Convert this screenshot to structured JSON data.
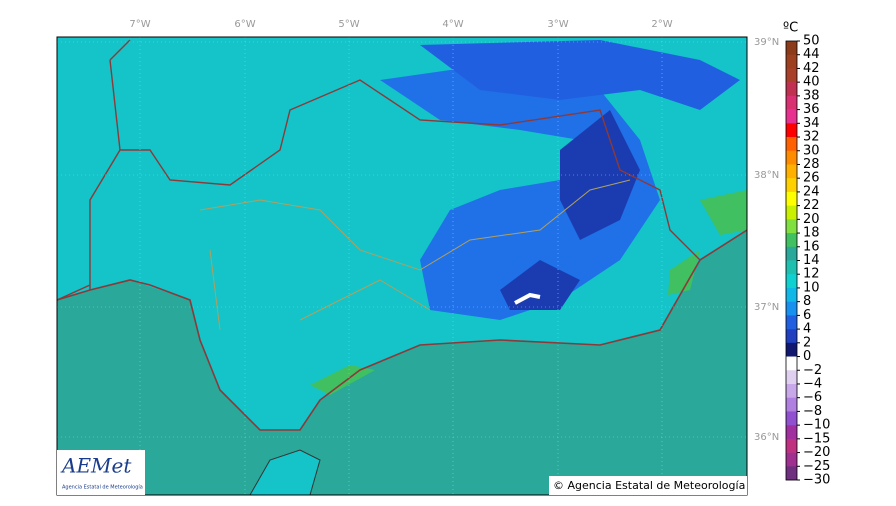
{
  "map": {
    "lon_labels": [
      "7°W",
      "6°W",
      "5°W",
      "4°W",
      "3°W",
      "2°W"
    ],
    "lat_labels": [
      "39°N",
      "38°N",
      "37°N",
      "36°N"
    ],
    "copyright": "© Agencia Estatal de Meteorología",
    "logo": {
      "title": "AEMet",
      "subtitle": "Agencia Estatal de Meteorología"
    }
  },
  "colorbar": {
    "unit": "ºC",
    "labels": [
      "50",
      "44",
      "42",
      "40",
      "38",
      "36",
      "34",
      "32",
      "30",
      "28",
      "26",
      "24",
      "22",
      "20",
      "18",
      "16",
      "14",
      "12",
      "10",
      "8",
      "6",
      "4",
      "2",
      "0",
      "−2",
      "−4",
      "−6",
      "−8",
      "−10",
      "−15",
      "−20",
      "−25",
      "−30"
    ],
    "colors": [
      "#8b3a1a",
      "#9c4020",
      "#a8402a",
      "#c03050",
      "#d83070",
      "#e83090",
      "#ff0000",
      "#ff6000",
      "#ff8c00",
      "#ffb000",
      "#ffd000",
      "#ffff00",
      "#c8f000",
      "#80e040",
      "#40c060",
      "#2aa89a",
      "#20c0b0",
      "#10d0d0",
      "#10b8e8",
      "#1890f0",
      "#2060e0",
      "#2040c0",
      "#101870",
      "#ffffff",
      "#e0d0f0",
      "#c8a8e8",
      "#b080e0",
      "#9050d0",
      "#a030a0",
      "#c03080",
      "#a03090",
      "#703080"
    ]
  }
}
